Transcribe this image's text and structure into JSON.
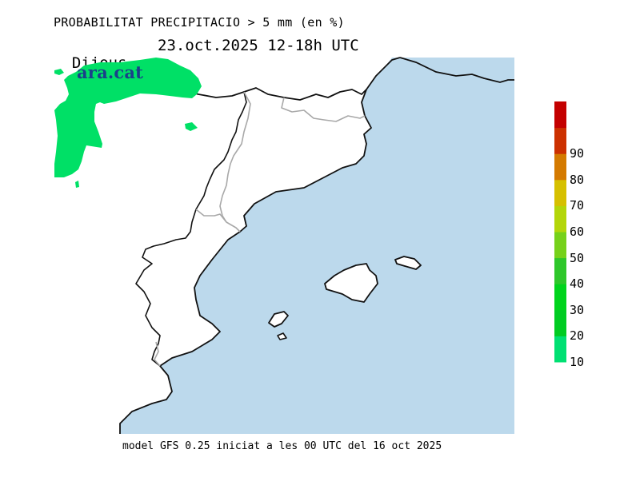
{
  "header": {
    "title": "PROBABILITAT PRECIPITACIO > 5 mm (en %)",
    "day": "Dijous",
    "date_range": "23.oct.2025 12-18h UTC"
  },
  "brand": {
    "text": "ara.cat"
  },
  "footer": {
    "text": "model GFS 0.25 iniciat a les 00 UTC del 16 oct 2025"
  },
  "colors": {
    "sea": "#bcd9ec",
    "land": "#ffffff",
    "coast": "#111111",
    "border": "#a8a8a8",
    "precip_10": "#00e066"
  },
  "legend": {
    "labels": [
      "10",
      "20",
      "30",
      "40",
      "50",
      "60",
      "70",
      "80",
      "90"
    ],
    "bins": [
      {
        "from": 10,
        "to": 20,
        "color": "#00e072"
      },
      {
        "from": 20,
        "to": 30,
        "color": "#00cc22"
      },
      {
        "from": 30,
        "to": 40,
        "color": "#00d41c"
      },
      {
        "from": 40,
        "to": 50,
        "color": "#2ec72a"
      },
      {
        "from": 50,
        "to": 60,
        "color": "#76d11a"
      },
      {
        "from": 60,
        "to": 70,
        "color": "#b3d60a"
      },
      {
        "from": 70,
        "to": 80,
        "color": "#d6c000"
      },
      {
        "from": 80,
        "to": 90,
        "color": "#d47a00"
      },
      {
        "from": 90,
        "to": 100,
        "color": "#cc3000"
      },
      {
        "from": 100,
        "to": 110,
        "color": "#c40000"
      }
    ]
  }
}
